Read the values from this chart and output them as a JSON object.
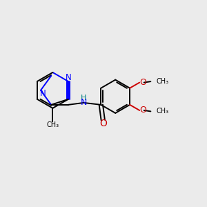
{
  "bg_color": "#ebebeb",
  "bond_color": "#000000",
  "nitrogen_color": "#0000ff",
  "oxygen_color": "#cc0000",
  "nh_color": "#008080",
  "figsize": [
    3.0,
    3.0
  ],
  "dpi": 100,
  "xlim": [
    0,
    10
  ],
  "ylim": [
    0,
    10
  ]
}
